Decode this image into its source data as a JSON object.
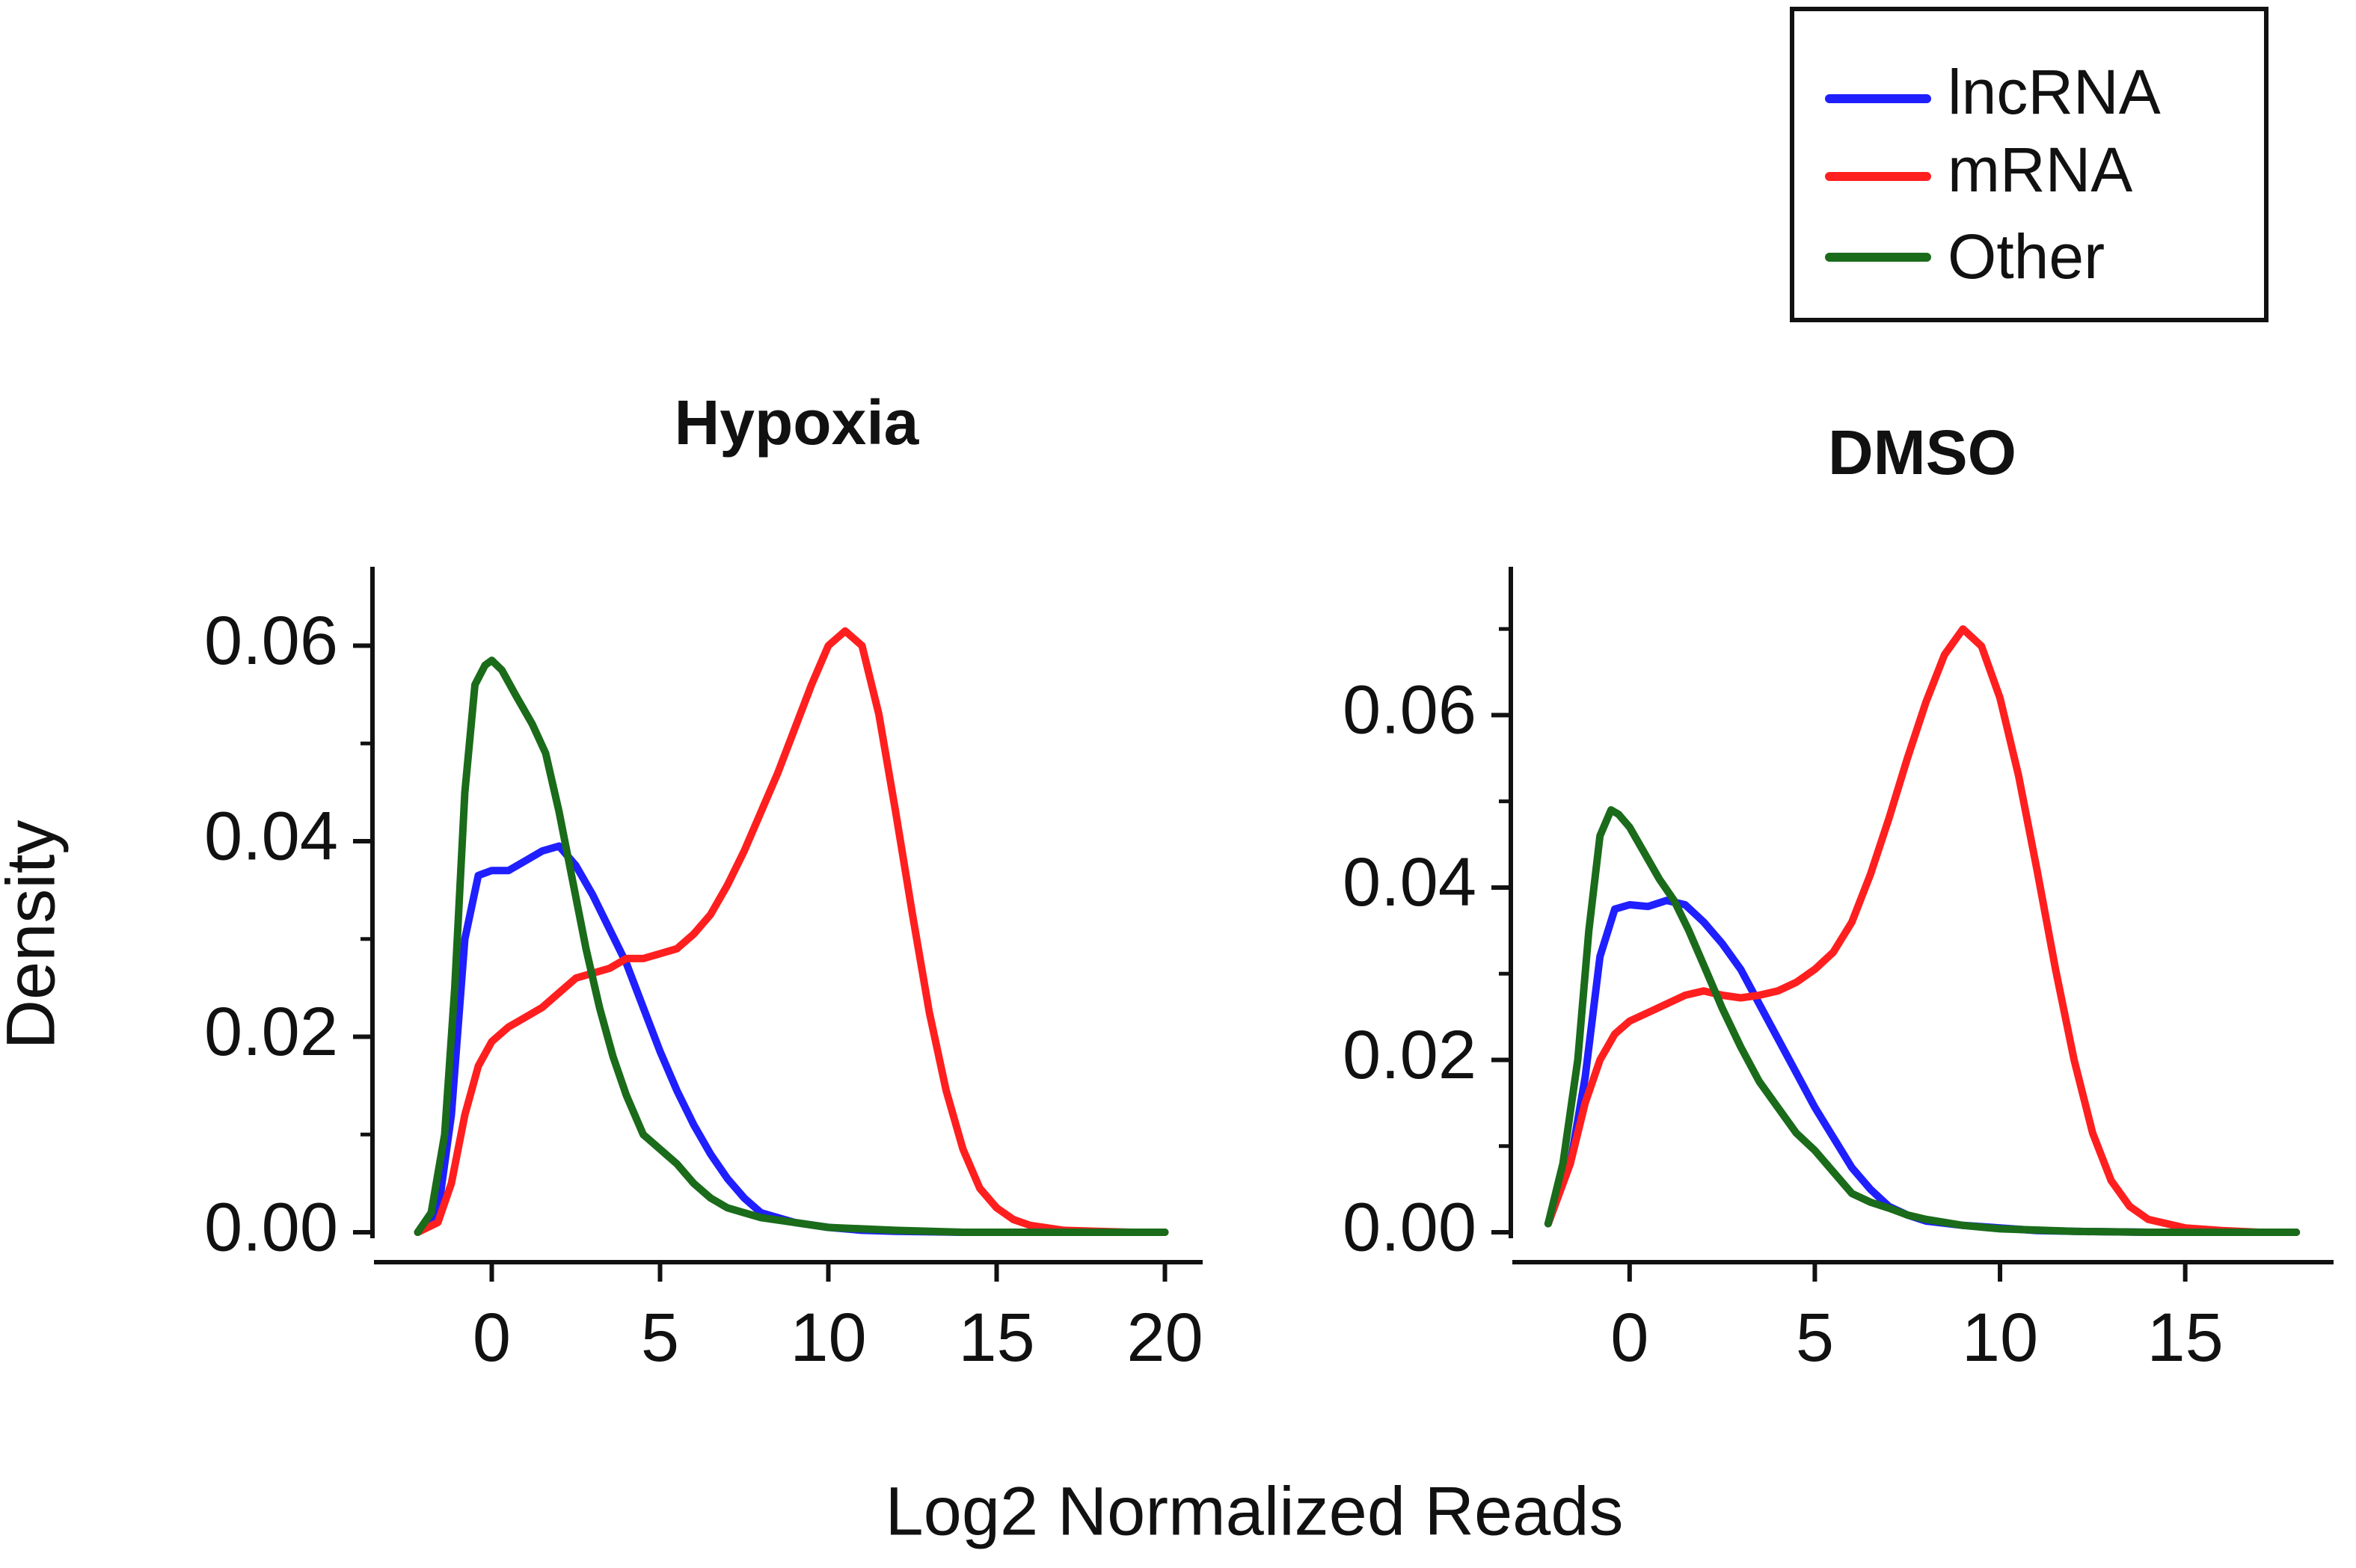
{
  "chart_data": [
    {
      "type": "line",
      "title": "Hypoxia",
      "xlabel": "Log2 Normalized Reads",
      "ylabel": "Density",
      "xlim": [
        -2.5,
        20.5
      ],
      "ylim": [
        0,
        0.067
      ],
      "xticks": [
        0,
        5,
        10,
        15,
        20
      ],
      "xtick_labels": [
        "0",
        "5",
        "10",
        "15",
        "20"
      ],
      "yticks": [
        0,
        0.02,
        0.04,
        0.06
      ],
      "ytick_labels": [
        "0.00",
        "0.02",
        "0.04",
        "0.06"
      ],
      "y_minor_ticks": [
        0.01,
        0.03,
        0.05
      ],
      "series": [
        {
          "name": "lncRNA",
          "color": "#1f1fff",
          "x": [
            -2.2,
            -1.6,
            -1.2,
            -0.8,
            -0.4,
            0,
            0.5,
            1,
            1.5,
            2,
            2.5,
            3,
            3.5,
            4,
            4.5,
            5,
            5.5,
            6,
            6.5,
            7,
            7.5,
            8,
            9,
            10,
            11,
            12,
            14,
            16,
            18,
            20
          ],
          "y": [
            0,
            0.002,
            0.012,
            0.03,
            0.0365,
            0.037,
            0.037,
            0.038,
            0.039,
            0.0395,
            0.0375,
            0.0345,
            0.031,
            0.0275,
            0.023,
            0.0185,
            0.0145,
            0.011,
            0.008,
            0.0055,
            0.0035,
            0.002,
            0.001,
            0.0005,
            0.0002,
            0.0001,
            0,
            0,
            0,
            0
          ]
        },
        {
          "name": "mRNA",
          "color": "#ff1f1f",
          "x": [
            -2.2,
            -1.6,
            -1.2,
            -0.8,
            -0.4,
            0,
            0.5,
            1,
            1.5,
            2,
            2.5,
            3,
            3.5,
            4,
            4.5,
            5,
            5.5,
            6,
            6.5,
            7,
            7.5,
            8,
            8.5,
            9,
            9.5,
            10,
            10.5,
            11,
            11.5,
            12,
            12.5,
            13,
            13.5,
            14,
            14.5,
            15,
            15.5,
            16,
            17,
            18,
            19,
            20
          ],
          "y": [
            0,
            0.001,
            0.005,
            0.012,
            0.017,
            0.0195,
            0.021,
            0.022,
            0.023,
            0.0245,
            0.026,
            0.0265,
            0.027,
            0.028,
            0.028,
            0.0285,
            0.029,
            0.0305,
            0.0325,
            0.0355,
            0.039,
            0.043,
            0.047,
            0.0515,
            0.056,
            0.06,
            0.0615,
            0.06,
            0.053,
            0.043,
            0.0325,
            0.0225,
            0.0145,
            0.0085,
            0.0045,
            0.0025,
            0.0013,
            0.0007,
            0.0002,
            0.0001,
            0,
            0
          ]
        },
        {
          "name": "Other",
          "color": "#1a6b1a",
          "x": [
            -2.2,
            -1.8,
            -1.4,
            -1.1,
            -0.8,
            -0.5,
            -0.2,
            0,
            0.3,
            0.7,
            1.2,
            1.6,
            2,
            2.4,
            2.8,
            3.2,
            3.6,
            4,
            4.5,
            5,
            5.5,
            6,
            6.5,
            7,
            7.5,
            8,
            9,
            10,
            12,
            14,
            16,
            18,
            20
          ],
          "y": [
            0,
            0.002,
            0.01,
            0.025,
            0.045,
            0.056,
            0.058,
            0.0585,
            0.0575,
            0.055,
            0.052,
            0.049,
            0.043,
            0.036,
            0.029,
            0.023,
            0.018,
            0.014,
            0.01,
            0.0085,
            0.007,
            0.005,
            0.0035,
            0.0025,
            0.002,
            0.0015,
            0.001,
            0.0005,
            0.0002,
            0,
            0,
            0,
            0
          ]
        }
      ]
    },
    {
      "type": "line",
      "title": "DMSO",
      "xlabel": "Log2 Normalized Reads",
      "ylabel": "Density",
      "xlim": [
        -2.5,
        18.5
      ],
      "ylim": [
        0,
        0.076
      ],
      "xticks": [
        0,
        5,
        10,
        15
      ],
      "xtick_labels": [
        "0",
        "5",
        "10",
        "15"
      ],
      "yticks": [
        0,
        0.02,
        0.04,
        0.06
      ],
      "ytick_labels": [
        "0.00",
        "0.02",
        "0.04",
        "0.06"
      ],
      "y_minor_ticks": [
        0.01,
        0.03,
        0.05,
        0.07
      ],
      "series": [
        {
          "name": "lncRNA",
          "color": "#1f1fff",
          "x": [
            -2.2,
            -1.6,
            -1.2,
            -0.8,
            -0.4,
            0,
            0.5,
            1,
            1.5,
            2,
            2.5,
            3,
            3.5,
            4,
            4.5,
            5,
            5.5,
            6,
            6.5,
            7,
            7.5,
            8,
            9,
            10,
            11,
            12,
            14,
            16,
            18
          ],
          "y": [
            0.001,
            0.008,
            0.018,
            0.032,
            0.0375,
            0.038,
            0.0378,
            0.0385,
            0.038,
            0.036,
            0.0335,
            0.0305,
            0.0265,
            0.0225,
            0.0185,
            0.0145,
            0.011,
            0.0075,
            0.005,
            0.003,
            0.002,
            0.0013,
            0.0008,
            0.0005,
            0.0002,
            0.0001,
            0,
            0,
            0
          ]
        },
        {
          "name": "mRNA",
          "color": "#ff1f1f",
          "x": [
            -2.2,
            -1.6,
            -1.2,
            -0.8,
            -0.4,
            0,
            0.5,
            1,
            1.5,
            2,
            2.5,
            3,
            3.5,
            4,
            4.5,
            5,
            5.5,
            6,
            6.5,
            7,
            7.5,
            8,
            8.5,
            9,
            9.5,
            10,
            10.5,
            11,
            11.5,
            12,
            12.5,
            13,
            13.5,
            14,
            15,
            16,
            17,
            18
          ],
          "y": [
            0.001,
            0.008,
            0.015,
            0.02,
            0.023,
            0.0245,
            0.0255,
            0.0265,
            0.0275,
            0.028,
            0.0275,
            0.0272,
            0.0275,
            0.028,
            0.029,
            0.0305,
            0.0325,
            0.036,
            0.0415,
            0.048,
            0.055,
            0.0615,
            0.067,
            0.07,
            0.068,
            0.062,
            0.053,
            0.042,
            0.0305,
            0.02,
            0.0115,
            0.006,
            0.003,
            0.0015,
            0.0005,
            0.0002,
            0,
            0
          ]
        },
        {
          "name": "Other",
          "color": "#1a6b1a",
          "x": [
            -2.2,
            -1.8,
            -1.4,
            -1.1,
            -0.8,
            -0.5,
            -0.3,
            0,
            0.4,
            0.8,
            1.2,
            1.6,
            2,
            2.5,
            3,
            3.5,
            4,
            4.5,
            5,
            5.5,
            6,
            6.5,
            7,
            7.5,
            8,
            9,
            10,
            12,
            14,
            16,
            18
          ],
          "y": [
            0.001,
            0.008,
            0.02,
            0.035,
            0.046,
            0.049,
            0.0485,
            0.047,
            0.044,
            0.041,
            0.0385,
            0.035,
            0.031,
            0.026,
            0.0215,
            0.0175,
            0.0145,
            0.0115,
            0.0095,
            0.007,
            0.0045,
            0.0035,
            0.0028,
            0.002,
            0.0015,
            0.0008,
            0.0004,
            0.0001,
            0,
            0,
            0
          ]
        }
      ]
    }
  ],
  "legend": {
    "position": "top-right",
    "entries": [
      {
        "label": "lncRNA",
        "color": "#1f1fff"
      },
      {
        "label": "mRNA",
        "color": "#ff1f1f"
      },
      {
        "label": "Other",
        "color": "#1a6b1a"
      }
    ]
  },
  "shared_xlabel": "Log2 Normalized Reads",
  "shared_ylabel": "Density"
}
